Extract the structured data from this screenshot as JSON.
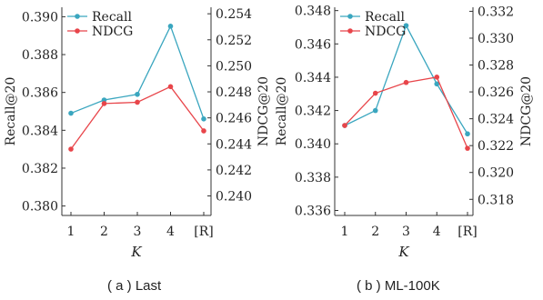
{
  "chart_data": [
    {
      "type": "line",
      "caption": "( a ) Last",
      "xlabel": "K",
      "ylabel_left": "Recall@20",
      "ylabel_right": "NDCG@20",
      "categories": [
        "1",
        "2",
        "3",
        "4",
        "[R]"
      ],
      "ylim_left": [
        0.3795,
        0.3905
      ],
      "yticks_left": [
        "0.380",
        "0.382",
        "0.384",
        "0.386",
        "0.388",
        "0.390"
      ],
      "ylim_right": [
        0.2385,
        0.2545
      ],
      "yticks_right": [
        "0.240",
        "0.242",
        "0.244",
        "0.246",
        "0.248",
        "0.250",
        "0.252",
        "0.254"
      ],
      "series": [
        {
          "name": "Recall",
          "axis": "left",
          "color": "#3aa6bf",
          "values": [
            0.3849,
            0.3856,
            0.3859,
            0.3895,
            0.3846
          ]
        },
        {
          "name": "NDCG",
          "axis": "right",
          "color": "#e8454a",
          "values": [
            0.2436,
            0.2471,
            0.2472,
            0.2484,
            0.245
          ]
        }
      ],
      "legend": "top-left"
    },
    {
      "type": "line",
      "caption": "( b ) ML-100K",
      "xlabel": "K",
      "ylabel_left": "Recall@20",
      "ylabel_right": "NDCG@20",
      "categories": [
        "1",
        "2",
        "3",
        "4",
        "[R]"
      ],
      "ylim_left": [
        0.3357,
        0.3482
      ],
      "yticks_left": [
        "0.336",
        "0.338",
        "0.340",
        "0.342",
        "0.344",
        "0.346",
        "0.348"
      ],
      "ylim_right": [
        0.3168,
        0.3323
      ],
      "yticks_right": [
        "0.318",
        "0.320",
        "0.322",
        "0.324",
        "0.326",
        "0.328",
        "0.330",
        "0.332"
      ],
      "series": [
        {
          "name": "Recall",
          "axis": "left",
          "color": "#3aa6bf",
          "values": [
            0.3411,
            0.342,
            0.3471,
            0.3436,
            0.3406
          ]
        },
        {
          "name": "NDCG",
          "axis": "right",
          "color": "#e8454a",
          "values": [
            0.3235,
            0.3259,
            0.3267,
            0.3271,
            0.3218
          ]
        }
      ],
      "legend": "top-left"
    }
  ]
}
